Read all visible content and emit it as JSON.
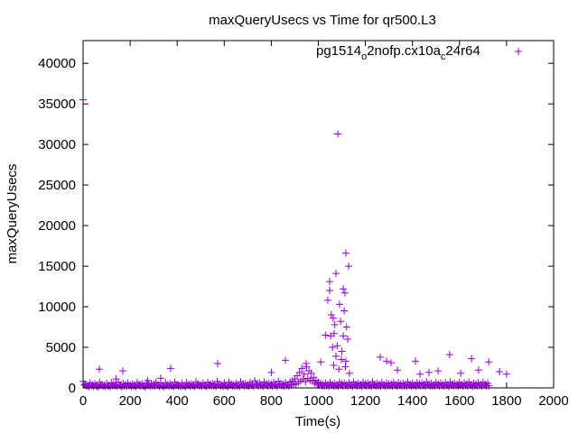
{
  "chart_data": {
    "type": "scatter",
    "title": "maxQueryUsecs vs Time for qr500.L3",
    "xlabel": "Time(s)",
    "ylabel": "maxQueryUsecs",
    "xlim": [
      0,
      2000
    ],
    "ylim": [
      0,
      42800
    ],
    "xticks": [
      0,
      200,
      400,
      600,
      800,
      1000,
      1200,
      1400,
      1600,
      1800,
      2000
    ],
    "yticks": [
      0,
      5000,
      10000,
      15000,
      20000,
      25000,
      30000,
      35000,
      40000
    ],
    "grid": false,
    "legend": {
      "position": "top-right",
      "label_main": "pg1514",
      "sub1": "o",
      "mid": "2nofp.cx10a",
      "sub2": "c",
      "tail": "24r64"
    },
    "color": "#9400d3",
    "baseline": {
      "t_start": 0,
      "t_step": 10,
      "values": [
        800,
        450,
        300,
        620,
        380,
        520,
        250,
        700,
        410,
        330,
        560,
        290,
        640,
        480,
        360,
        720,
        270,
        530,
        440,
        610,
        350,
        490,
        300,
        680,
        420,
        560,
        240,
        630,
        390,
        510,
        470,
        700,
        330,
        580,
        260,
        650,
        400,
        540,
        310,
        720,
        450,
        360,
        590,
        280,
        660,
        430,
        520,
        340,
        750,
        480,
        390,
        610,
        300,
        690,
        440,
        570,
        350,
        800,
        460,
        380,
        640,
        290,
        710,
        500,
        420,
        590,
        330,
        760,
        470,
        540,
        360,
        680,
        410,
        880,
        450,
        620,
        380,
        730,
        500,
        560,
        430,
        690,
        370,
        820,
        510,
        460,
        650,
        390,
        740,
        880,
        1100,
        1500,
        1900,
        2400,
        1700,
        2600,
        2100,
        1800,
        1300,
        950,
        700,
        560,
        480,
        620,
        400,
        680,
        450,
        540,
        370,
        710,
        490,
        600,
        420,
        650,
        360,
        730,
        470,
        580,
        410,
        690,
        500,
        620,
        380,
        760,
        450,
        540,
        430,
        680,
        390,
        610,
        520,
        470,
        700,
        360,
        640,
        480,
        560,
        410,
        720,
        440,
        590,
        370,
        670,
        500,
        610,
        430,
        750,
        460,
        540,
        390,
        690,
        480,
        600,
        420,
        650,
        370,
        720,
        510,
        560,
        440,
        680,
        400,
        610,
        470,
        740,
        380,
        590,
        500,
        660,
        430,
        700,
        450,
        580
      ]
    },
    "outliers": [
      [
        0,
        35500
      ],
      [
        69,
        2300
      ],
      [
        169,
        2100
      ],
      [
        140,
        1100
      ],
      [
        275,
        900
      ],
      [
        330,
        1200
      ],
      [
        372,
        2400
      ],
      [
        572,
        3000
      ],
      [
        800,
        1900
      ],
      [
        860,
        3400
      ],
      [
        948,
        3000
      ],
      [
        1010,
        3200
      ],
      [
        1030,
        6500
      ],
      [
        1040,
        10800
      ],
      [
        1048,
        13100
      ],
      [
        1048,
        12000
      ],
      [
        1055,
        9000
      ],
      [
        1060,
        5000
      ],
      [
        1063,
        8600
      ],
      [
        1067,
        6700
      ],
      [
        1052,
        6400
      ],
      [
        1070,
        7800
      ],
      [
        1075,
        14100
      ],
      [
        1075,
        3900
      ],
      [
        1083,
        31300
      ],
      [
        1087,
        2300
      ],
      [
        1090,
        10300
      ],
      [
        1095,
        8200
      ],
      [
        1100,
        4500
      ],
      [
        1106,
        12200
      ],
      [
        1106,
        6400
      ],
      [
        1110,
        9500
      ],
      [
        1113,
        11700
      ],
      [
        1117,
        16600
      ],
      [
        1117,
        3300
      ],
      [
        1120,
        7500
      ],
      [
        1125,
        6000
      ],
      [
        1129,
        15000
      ],
      [
        1132,
        1800
      ],
      [
        1080,
        5200
      ],
      [
        1098,
        3500
      ],
      [
        1065,
        2800
      ],
      [
        1115,
        2600
      ],
      [
        1263,
        3800
      ],
      [
        1290,
        3300
      ],
      [
        1309,
        3100
      ],
      [
        1336,
        2200
      ],
      [
        1413,
        3300
      ],
      [
        1432,
        1700
      ],
      [
        1470,
        1900
      ],
      [
        1509,
        2100
      ],
      [
        1558,
        4100
      ],
      [
        1605,
        1800
      ],
      [
        1651,
        3600
      ],
      [
        1681,
        2200
      ],
      [
        1724,
        3200
      ],
      [
        1770,
        2000
      ],
      [
        1800,
        1700
      ]
    ]
  }
}
